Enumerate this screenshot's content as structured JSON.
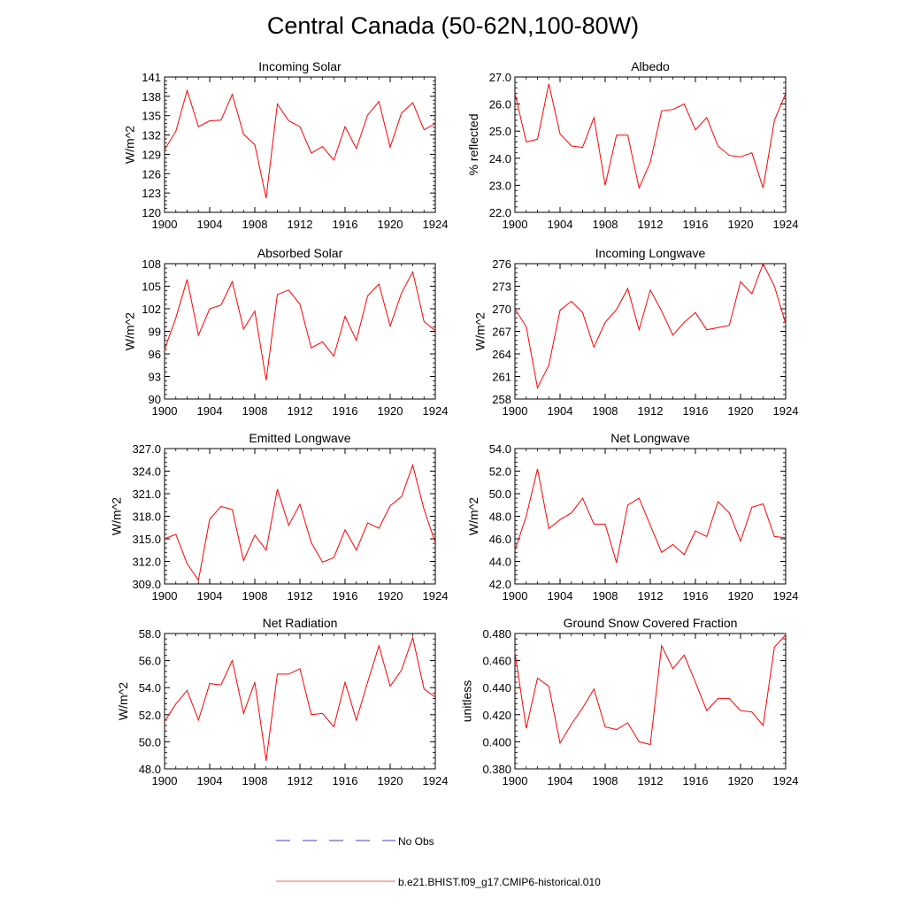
{
  "title": "Central Canada (50-62N,100-80W)",
  "colors": {
    "model_line": "#ff0000",
    "obs_line": "#4040c0",
    "axis": "#000000"
  },
  "legend": {
    "items": [
      {
        "label": "No Obs",
        "color": "#4040c0",
        "dash": true
      },
      {
        "label": "b.e21.BHIST.f09_g17.CMIP6-historical.010",
        "color": "#ff6060",
        "dash": false
      }
    ]
  },
  "chart_data": [
    {
      "type": "line",
      "title": "Incoming Solar",
      "ylabel": "W/m^2",
      "xlim": [
        1900,
        1924
      ],
      "ylim": [
        120,
        141
      ],
      "xticks": [
        1900,
        1904,
        1908,
        1912,
        1916,
        1920,
        1924
      ],
      "yticks": [
        120,
        123,
        126,
        129,
        132,
        135,
        138,
        141
      ],
      "ytick_labels": [
        "120",
        "123",
        "126",
        "129",
        "132",
        "135",
        "138",
        "141"
      ],
      "x": [
        1900,
        1901,
        1902,
        1903,
        1904,
        1905,
        1906,
        1907,
        1908,
        1909,
        1910,
        1911,
        1912,
        1913,
        1914,
        1915,
        1916,
        1917,
        1918,
        1919,
        1920,
        1921,
        1922,
        1923,
        1924
      ],
      "series": [
        {
          "values": [
            129.7,
            132.6,
            138.9,
            133.3,
            134.2,
            134.3,
            138.3,
            132.1,
            130.5,
            122.2,
            136.8,
            134.2,
            133.3,
            129.2,
            130.2,
            128.1,
            133.3,
            129.9,
            135.1,
            137.2,
            130.1,
            135.4,
            137.0,
            132.8,
            133.8
          ]
        }
      ]
    },
    {
      "type": "line",
      "title": "Albedo",
      "ylabel": "% reflected",
      "xlim": [
        1900,
        1924
      ],
      "ylim": [
        22.0,
        27.0
      ],
      "xticks": [
        1900,
        1904,
        1908,
        1912,
        1916,
        1920,
        1924
      ],
      "yticks": [
        22,
        23,
        24,
        25,
        26,
        27
      ],
      "ytick_labels": [
        "22.0",
        "23.0",
        "24.0",
        "25.0",
        "26.0",
        "27.0"
      ],
      "x": [
        1900,
        1901,
        1902,
        1903,
        1904,
        1905,
        1906,
        1907,
        1908,
        1909,
        1910,
        1911,
        1912,
        1913,
        1914,
        1915,
        1916,
        1917,
        1918,
        1919,
        1920,
        1921,
        1922,
        1923,
        1924
      ],
      "series": [
        {
          "values": [
            26.4,
            24.6,
            24.7,
            26.75,
            24.9,
            24.45,
            24.4,
            25.5,
            23.0,
            24.85,
            24.85,
            22.9,
            23.85,
            25.75,
            25.8,
            26.0,
            25.05,
            25.5,
            24.45,
            24.1,
            24.05,
            24.2,
            22.9,
            25.4,
            26.4
          ]
        }
      ]
    },
    {
      "type": "line",
      "title": "Absorbed Solar",
      "ylabel": "W/m^2",
      "xlim": [
        1900,
        1924
      ],
      "ylim": [
        90,
        108
      ],
      "xticks": [
        1900,
        1904,
        1908,
        1912,
        1916,
        1920,
        1924
      ],
      "yticks": [
        90,
        93,
        96,
        99,
        102,
        105,
        108
      ],
      "ytick_labels": [
        "90",
        "93",
        "96",
        "99",
        "102",
        "105",
        "108"
      ],
      "x": [
        1900,
        1901,
        1902,
        1903,
        1904,
        1905,
        1906,
        1907,
        1908,
        1909,
        1910,
        1911,
        1912,
        1913,
        1914,
        1915,
        1916,
        1917,
        1918,
        1919,
        1920,
        1921,
        1922,
        1923,
        1924
      ],
      "series": [
        {
          "values": [
            96.6,
            100.8,
            105.9,
            98.5,
            102.0,
            102.5,
            105.6,
            99.3,
            101.7,
            92.5,
            103.9,
            104.5,
            102.6,
            96.8,
            97.6,
            95.7,
            101.0,
            97.8,
            103.7,
            105.3,
            99.7,
            104.1,
            106.9,
            100.3,
            99.1
          ]
        }
      ]
    },
    {
      "type": "line",
      "title": "Incoming Longwave",
      "ylabel": "W/m^2",
      "xlim": [
        1900,
        1924
      ],
      "ylim": [
        258,
        276
      ],
      "xticks": [
        1900,
        1904,
        1908,
        1912,
        1916,
        1920,
        1924
      ],
      "yticks": [
        258,
        261,
        264,
        267,
        270,
        273,
        276
      ],
      "ytick_labels": [
        "258",
        "261",
        "264",
        "267",
        "270",
        "273",
        "276"
      ],
      "x": [
        1900,
        1901,
        1902,
        1903,
        1904,
        1905,
        1906,
        1907,
        1908,
        1909,
        1910,
        1911,
        1912,
        1913,
        1914,
        1915,
        1916,
        1917,
        1918,
        1919,
        1920,
        1921,
        1922,
        1923,
        1924
      ],
      "series": [
        {
          "values": [
            270.0,
            267.6,
            259.5,
            262.5,
            269.8,
            271.0,
            269.5,
            264.9,
            268.2,
            269.9,
            272.7,
            267.2,
            272.5,
            269.7,
            266.5,
            268.2,
            269.5,
            267.2,
            267.5,
            267.8,
            273.6,
            272.0,
            276.0,
            273.0,
            268.0
          ]
        }
      ]
    },
    {
      "type": "line",
      "title": "Emitted Longwave",
      "ylabel": "W/m^2",
      "xlim": [
        1900,
        1924
      ],
      "ylim": [
        309.0,
        327.0
      ],
      "xticks": [
        1900,
        1904,
        1908,
        1912,
        1916,
        1920,
        1924
      ],
      "yticks": [
        309,
        312,
        315,
        318,
        321,
        324,
        327
      ],
      "ytick_labels": [
        "309.0",
        "312.0",
        "315.0",
        "318.0",
        "321.0",
        "324.0",
        "327.0"
      ],
      "x": [
        1900,
        1901,
        1902,
        1903,
        1904,
        1905,
        1906,
        1907,
        1908,
        1909,
        1910,
        1911,
        1912,
        1913,
        1914,
        1915,
        1916,
        1917,
        1918,
        1919,
        1920,
        1921,
        1922,
        1923,
        1924
      ],
      "series": [
        {
          "values": [
            315.0,
            315.6,
            311.7,
            309.5,
            317.6,
            319.3,
            318.9,
            312.1,
            315.5,
            313.5,
            321.6,
            316.8,
            319.6,
            314.5,
            311.9,
            312.5,
            316.2,
            313.5,
            317.1,
            316.4,
            319.4,
            320.6,
            324.8,
            318.9,
            314.5
          ]
        }
      ]
    },
    {
      "type": "line",
      "title": "Net Longwave",
      "ylabel": "W/m^2",
      "xlim": [
        1900,
        1924
      ],
      "ylim": [
        42.0,
        54.0
      ],
      "xticks": [
        1900,
        1904,
        1908,
        1912,
        1916,
        1920,
        1924
      ],
      "yticks": [
        42,
        44,
        46,
        48,
        50,
        52,
        54
      ],
      "ytick_labels": [
        "42.0",
        "44.0",
        "46.0",
        "48.0",
        "50.0",
        "52.0",
        "54.0"
      ],
      "x": [
        1900,
        1901,
        1902,
        1903,
        1904,
        1905,
        1906,
        1907,
        1908,
        1909,
        1910,
        1911,
        1912,
        1913,
        1914,
        1915,
        1916,
        1917,
        1918,
        1919,
        1920,
        1921,
        1922,
        1923,
        1924
      ],
      "series": [
        {
          "values": [
            45.0,
            48.0,
            52.2,
            46.9,
            47.7,
            48.3,
            49.6,
            47.3,
            47.3,
            43.9,
            49.0,
            49.6,
            47.2,
            44.8,
            45.5,
            44.6,
            46.7,
            46.2,
            49.3,
            48.3,
            45.8,
            48.8,
            49.1,
            46.2,
            46.1
          ]
        }
      ]
    },
    {
      "type": "line",
      "title": "Net Radiation",
      "ylabel": "W/m^2",
      "xlim": [
        1900,
        1924
      ],
      "ylim": [
        48.0,
        58.0
      ],
      "xticks": [
        1900,
        1904,
        1908,
        1912,
        1916,
        1920,
        1924
      ],
      "yticks": [
        48,
        50,
        52,
        54,
        56,
        58
      ],
      "ytick_labels": [
        "48.0",
        "50.0",
        "52.0",
        "54.0",
        "56.0",
        "58.0"
      ],
      "x": [
        1900,
        1901,
        1902,
        1903,
        1904,
        1905,
        1906,
        1907,
        1908,
        1909,
        1910,
        1911,
        1912,
        1913,
        1914,
        1915,
        1916,
        1917,
        1918,
        1919,
        1920,
        1921,
        1922,
        1923,
        1924
      ],
      "series": [
        {
          "values": [
            51.5,
            52.8,
            53.8,
            51.6,
            54.3,
            54.2,
            56.0,
            52.1,
            54.4,
            48.6,
            55.0,
            55.0,
            55.4,
            52.0,
            52.1,
            51.1,
            54.4,
            51.6,
            54.4,
            57.1,
            54.1,
            55.3,
            57.7,
            53.9,
            53.3
          ]
        }
      ]
    },
    {
      "type": "line",
      "title": "Ground Snow Covered Fraction",
      "ylabel": "unitless",
      "xlim": [
        1900,
        1924
      ],
      "ylim": [
        0.38,
        0.48
      ],
      "xticks": [
        1900,
        1904,
        1908,
        1912,
        1916,
        1920,
        1924
      ],
      "yticks": [
        0.38,
        0.4,
        0.42,
        0.44,
        0.46,
        0.48
      ],
      "ytick_labels": [
        "0.380",
        "0.400",
        "0.420",
        "0.440",
        "0.460",
        "0.480"
      ],
      "x": [
        1900,
        1901,
        1902,
        1903,
        1904,
        1905,
        1906,
        1907,
        1908,
        1909,
        1910,
        1911,
        1912,
        1913,
        1914,
        1915,
        1916,
        1917,
        1918,
        1919,
        1920,
        1921,
        1922,
        1923,
        1924
      ],
      "series": [
        {
          "values": [
            0.466,
            0.41,
            0.447,
            0.441,
            0.399,
            0.413,
            0.425,
            0.439,
            0.411,
            0.409,
            0.414,
            0.4,
            0.398,
            0.471,
            0.454,
            0.464,
            0.444,
            0.423,
            0.432,
            0.432,
            0.423,
            0.422,
            0.412,
            0.47,
            0.479
          ]
        }
      ]
    }
  ]
}
